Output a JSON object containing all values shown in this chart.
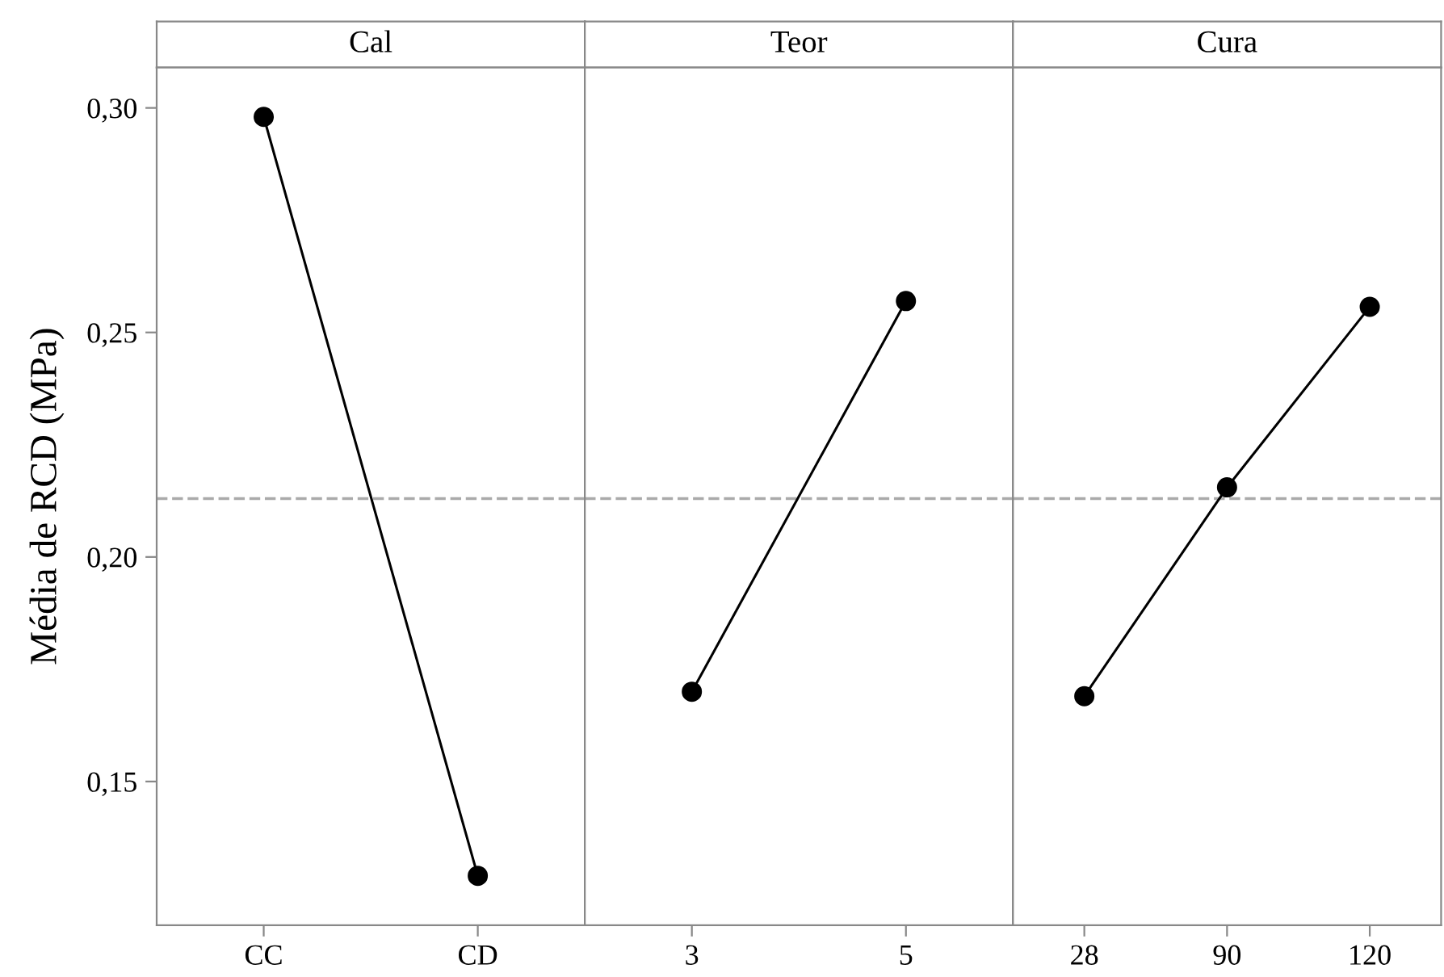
{
  "chart_data": [
    {
      "type": "line",
      "title": "Cal",
      "ylabel": "Média de RCD (MPa)",
      "categories": [
        "CC",
        "CD"
      ],
      "series": [
        {
          "color": "#000000",
          "values": [
            0.298,
            0.129
          ]
        }
      ],
      "ylim": [
        0.118,
        0.309
      ],
      "yticks": [
        {
          "value": 0.15,
          "label": "0,15"
        },
        {
          "value": 0.2,
          "label": "0,20"
        },
        {
          "value": 0.25,
          "label": "0,25"
        },
        {
          "value": 0.3,
          "label": "0,30"
        }
      ],
      "ref_lines": [
        {
          "axis": "y",
          "value": 0.213,
          "color": "#aaaaaa",
          "line_style": "dashed"
        }
      ],
      "marker": "circle",
      "line_style": "solid"
    },
    {
      "type": "line",
      "title": "Teor",
      "categories": [
        "3",
        "5"
      ],
      "series": [
        {
          "color": "#000000",
          "values": [
            0.17,
            0.257
          ]
        }
      ],
      "ylim": [
        0.118,
        0.309
      ],
      "ref_lines": [
        {
          "axis": "y",
          "value": 0.213,
          "color": "#aaaaaa",
          "line_style": "dashed"
        }
      ],
      "marker": "circle",
      "line_style": "solid",
      "tick_labels": "x"
    },
    {
      "type": "line",
      "title": "Cura",
      "categories": [
        "28",
        "90",
        "120"
      ],
      "series": [
        {
          "color": "#000000",
          "values": [
            0.169,
            0.2155,
            0.2557
          ]
        }
      ],
      "ylim": [
        0.118,
        0.309
      ],
      "ref_lines": [
        {
          "axis": "y",
          "value": 0.213,
          "color": "#aaaaaa",
          "line_style": "dashed"
        }
      ],
      "marker": "circle",
      "line_style": "solid",
      "tick_labels": "x"
    }
  ]
}
